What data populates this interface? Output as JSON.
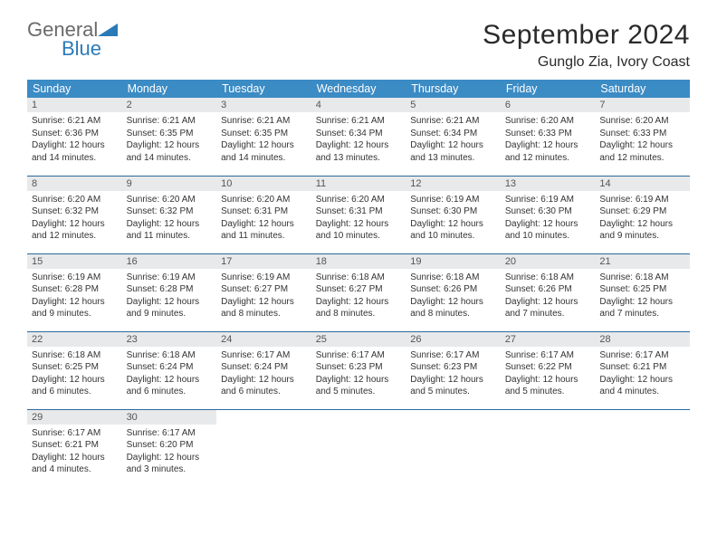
{
  "brand": {
    "general": "General",
    "blue": "Blue"
  },
  "header": {
    "month_title": "September 2024",
    "location": "Gunglo Zia, Ivory Coast"
  },
  "colors": {
    "headerbar": "#3b8bc4",
    "daynum_bg": "#e8e9ea",
    "rule": "#2a6a9e"
  },
  "weekdays": [
    "Sunday",
    "Monday",
    "Tuesday",
    "Wednesday",
    "Thursday",
    "Friday",
    "Saturday"
  ],
  "days": [
    {
      "n": "1",
      "sr": "6:21 AM",
      "ss": "6:36 PM",
      "dl": "12 hours and 14 minutes."
    },
    {
      "n": "2",
      "sr": "6:21 AM",
      "ss": "6:35 PM",
      "dl": "12 hours and 14 minutes."
    },
    {
      "n": "3",
      "sr": "6:21 AM",
      "ss": "6:35 PM",
      "dl": "12 hours and 14 minutes."
    },
    {
      "n": "4",
      "sr": "6:21 AM",
      "ss": "6:34 PM",
      "dl": "12 hours and 13 minutes."
    },
    {
      "n": "5",
      "sr": "6:21 AM",
      "ss": "6:34 PM",
      "dl": "12 hours and 13 minutes."
    },
    {
      "n": "6",
      "sr": "6:20 AM",
      "ss": "6:33 PM",
      "dl": "12 hours and 12 minutes."
    },
    {
      "n": "7",
      "sr": "6:20 AM",
      "ss": "6:33 PM",
      "dl": "12 hours and 12 minutes."
    },
    {
      "n": "8",
      "sr": "6:20 AM",
      "ss": "6:32 PM",
      "dl": "12 hours and 12 minutes."
    },
    {
      "n": "9",
      "sr": "6:20 AM",
      "ss": "6:32 PM",
      "dl": "12 hours and 11 minutes."
    },
    {
      "n": "10",
      "sr": "6:20 AM",
      "ss": "6:31 PM",
      "dl": "12 hours and 11 minutes."
    },
    {
      "n": "11",
      "sr": "6:20 AM",
      "ss": "6:31 PM",
      "dl": "12 hours and 10 minutes."
    },
    {
      "n": "12",
      "sr": "6:19 AM",
      "ss": "6:30 PM",
      "dl": "12 hours and 10 minutes."
    },
    {
      "n": "13",
      "sr": "6:19 AM",
      "ss": "6:30 PM",
      "dl": "12 hours and 10 minutes."
    },
    {
      "n": "14",
      "sr": "6:19 AM",
      "ss": "6:29 PM",
      "dl": "12 hours and 9 minutes."
    },
    {
      "n": "15",
      "sr": "6:19 AM",
      "ss": "6:28 PM",
      "dl": "12 hours and 9 minutes."
    },
    {
      "n": "16",
      "sr": "6:19 AM",
      "ss": "6:28 PM",
      "dl": "12 hours and 9 minutes."
    },
    {
      "n": "17",
      "sr": "6:19 AM",
      "ss": "6:27 PM",
      "dl": "12 hours and 8 minutes."
    },
    {
      "n": "18",
      "sr": "6:18 AM",
      "ss": "6:27 PM",
      "dl": "12 hours and 8 minutes."
    },
    {
      "n": "19",
      "sr": "6:18 AM",
      "ss": "6:26 PM",
      "dl": "12 hours and 8 minutes."
    },
    {
      "n": "20",
      "sr": "6:18 AM",
      "ss": "6:26 PM",
      "dl": "12 hours and 7 minutes."
    },
    {
      "n": "21",
      "sr": "6:18 AM",
      "ss": "6:25 PM",
      "dl": "12 hours and 7 minutes."
    },
    {
      "n": "22",
      "sr": "6:18 AM",
      "ss": "6:25 PM",
      "dl": "12 hours and 6 minutes."
    },
    {
      "n": "23",
      "sr": "6:18 AM",
      "ss": "6:24 PM",
      "dl": "12 hours and 6 minutes."
    },
    {
      "n": "24",
      "sr": "6:17 AM",
      "ss": "6:24 PM",
      "dl": "12 hours and 6 minutes."
    },
    {
      "n": "25",
      "sr": "6:17 AM",
      "ss": "6:23 PM",
      "dl": "12 hours and 5 minutes."
    },
    {
      "n": "26",
      "sr": "6:17 AM",
      "ss": "6:23 PM",
      "dl": "12 hours and 5 minutes."
    },
    {
      "n": "27",
      "sr": "6:17 AM",
      "ss": "6:22 PM",
      "dl": "12 hours and 5 minutes."
    },
    {
      "n": "28",
      "sr": "6:17 AM",
      "ss": "6:21 PM",
      "dl": "12 hours and 4 minutes."
    },
    {
      "n": "29",
      "sr": "6:17 AM",
      "ss": "6:21 PM",
      "dl": "12 hours and 4 minutes."
    },
    {
      "n": "30",
      "sr": "6:17 AM",
      "ss": "6:20 PM",
      "dl": "12 hours and 3 minutes."
    }
  ],
  "labels": {
    "sunrise": "Sunrise:",
    "sunset": "Sunset:",
    "daylight": "Daylight:"
  }
}
